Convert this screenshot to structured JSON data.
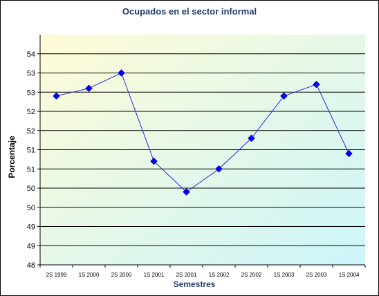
{
  "chart_data": {
    "type": "line",
    "title": "Ocupados en el sector informal",
    "xlabel": "Semestres",
    "ylabel": "Porcentaje",
    "categories": [
      "2S 1999",
      "1S 2000",
      "2S 2000",
      "1S 2001",
      "2S 2001",
      "1S 2002",
      "2S 2002",
      "1S 2003",
      "2S 2003",
      "1S 2004"
    ],
    "series": [
      {
        "values": [
          52.4,
          52.6,
          53.0,
          50.7,
          49.9,
          50.5,
          51.3,
          52.4,
          52.7,
          50.9
        ]
      }
    ],
    "ylim": [
      48,
      54
    ],
    "y_ticks": [
      {
        "value": 48,
        "label": "48"
      },
      {
        "value": 48.5,
        "label": "49"
      },
      {
        "value": 49,
        "label": "49"
      },
      {
        "value": 49.5,
        "label": "50"
      },
      {
        "value": 50,
        "label": "50"
      },
      {
        "value": 50.5,
        "label": "51"
      },
      {
        "value": 51,
        "label": "51"
      },
      {
        "value": 51.5,
        "label": "52"
      },
      {
        "value": 52,
        "label": "52"
      },
      {
        "value": 52.5,
        "label": "53"
      },
      {
        "value": 53,
        "label": "53"
      },
      {
        "value": 53.5,
        "label": "54"
      }
    ],
    "grid": true,
    "legend": "none",
    "colors": {
      "line": "#2a2ae0",
      "marker": "#0000ff",
      "title": "#1f3d6b",
      "axis_title": "#1f3d6b",
      "grid": "#000000",
      "bg_start": "#fffbd6",
      "bg_end": "#ccf5fa"
    }
  }
}
